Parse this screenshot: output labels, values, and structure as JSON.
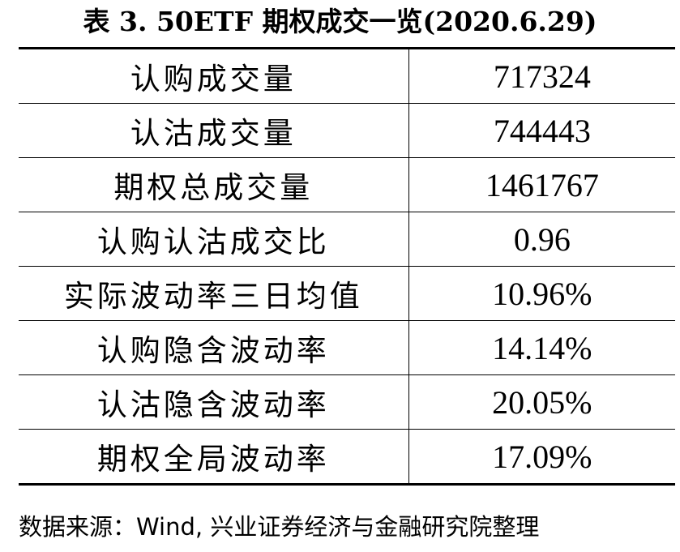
{
  "title": "表 3.  50ETF 期权成交一览(2020.6.29)",
  "table": {
    "rows": [
      {
        "label": "认购成交量",
        "value": "717324"
      },
      {
        "label": "认沽成交量",
        "value": "744443"
      },
      {
        "label": "期权总成交量",
        "value": "1461767"
      },
      {
        "label": "认购认沽成交比",
        "value": "0.96"
      },
      {
        "label": "实际波动率三日均值",
        "value": "10.96%"
      },
      {
        "label": "认购隐含波动率",
        "value": "14.14%"
      },
      {
        "label": "认沽隐含波动率",
        "value": "20.05%"
      },
      {
        "label": "期权全局波动率",
        "value": "17.09%"
      }
    ]
  },
  "source": "数据来源：Wind, 兴业证券经济与金融研究院整理"
}
